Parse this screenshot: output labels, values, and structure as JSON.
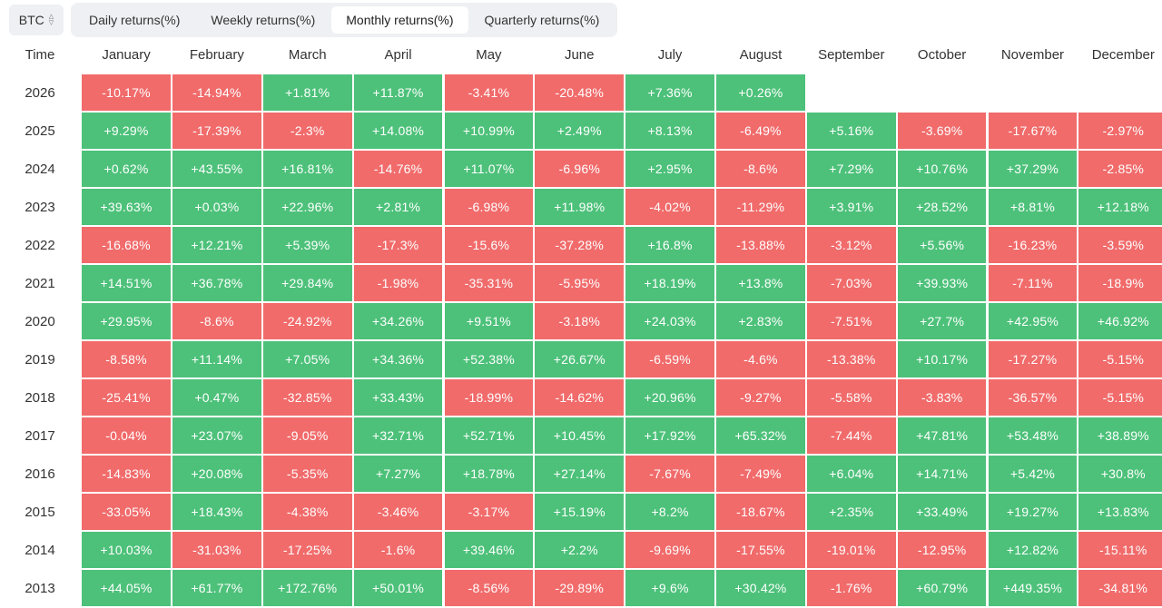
{
  "asset": {
    "label": "BTC"
  },
  "tabs": [
    {
      "label": "Daily returns(%)",
      "active": false
    },
    {
      "label": "Weekly returns(%)",
      "active": false
    },
    {
      "label": "Monthly returns(%)",
      "active": true
    },
    {
      "label": "Quarterly returns(%)",
      "active": false
    }
  ],
  "table": {
    "time_header": "Time",
    "months": [
      "January",
      "February",
      "March",
      "April",
      "May",
      "June",
      "July",
      "August",
      "September",
      "October",
      "November",
      "December"
    ],
    "rows": [
      {
        "year": "2026",
        "values": [
          "-10.17%",
          "-14.94%",
          "+1.81%",
          "+11.87%",
          "-3.41%",
          "-20.48%",
          "+7.36%",
          "+0.26%",
          "",
          "",
          "",
          ""
        ]
      },
      {
        "year": "2025",
        "values": [
          "+9.29%",
          "-17.39%",
          "-2.3%",
          "+14.08%",
          "+10.99%",
          "+2.49%",
          "+8.13%",
          "-6.49%",
          "+5.16%",
          "-3.69%",
          "-17.67%",
          "-2.97%"
        ]
      },
      {
        "year": "2024",
        "values": [
          "+0.62%",
          "+43.55%",
          "+16.81%",
          "-14.76%",
          "+11.07%",
          "-6.96%",
          "+2.95%",
          "-8.6%",
          "+7.29%",
          "+10.76%",
          "+37.29%",
          "-2.85%"
        ]
      },
      {
        "year": "2023",
        "values": [
          "+39.63%",
          "+0.03%",
          "+22.96%",
          "+2.81%",
          "-6.98%",
          "+11.98%",
          "-4.02%",
          "-11.29%",
          "+3.91%",
          "+28.52%",
          "+8.81%",
          "+12.18%"
        ]
      },
      {
        "year": "2022",
        "values": [
          "-16.68%",
          "+12.21%",
          "+5.39%",
          "-17.3%",
          "-15.6%",
          "-37.28%",
          "+16.8%",
          "-13.88%",
          "-3.12%",
          "+5.56%",
          "-16.23%",
          "-3.59%"
        ]
      },
      {
        "year": "2021",
        "values": [
          "+14.51%",
          "+36.78%",
          "+29.84%",
          "-1.98%",
          "-35.31%",
          "-5.95%",
          "+18.19%",
          "+13.8%",
          "-7.03%",
          "+39.93%",
          "-7.11%",
          "-18.9%"
        ]
      },
      {
        "year": "2020",
        "values": [
          "+29.95%",
          "-8.6%",
          "-24.92%",
          "+34.26%",
          "+9.51%",
          "-3.18%",
          "+24.03%",
          "+2.83%",
          "-7.51%",
          "+27.7%",
          "+42.95%",
          "+46.92%"
        ]
      },
      {
        "year": "2019",
        "values": [
          "-8.58%",
          "+11.14%",
          "+7.05%",
          "+34.36%",
          "+52.38%",
          "+26.67%",
          "-6.59%",
          "-4.6%",
          "-13.38%",
          "+10.17%",
          "-17.27%",
          "-5.15%"
        ]
      },
      {
        "year": "2018",
        "values": [
          "-25.41%",
          "+0.47%",
          "-32.85%",
          "+33.43%",
          "-18.99%",
          "-14.62%",
          "+20.96%",
          "-9.27%",
          "-5.58%",
          "-3.83%",
          "-36.57%",
          "-5.15%"
        ]
      },
      {
        "year": "2017",
        "values": [
          "-0.04%",
          "+23.07%",
          "-9.05%",
          "+32.71%",
          "+52.71%",
          "+10.45%",
          "+17.92%",
          "+65.32%",
          "-7.44%",
          "+47.81%",
          "+53.48%",
          "+38.89%"
        ]
      },
      {
        "year": "2016",
        "values": [
          "-14.83%",
          "+20.08%",
          "-5.35%",
          "+7.27%",
          "+18.78%",
          "+27.14%",
          "-7.67%",
          "-7.49%",
          "+6.04%",
          "+14.71%",
          "+5.42%",
          "+30.8%"
        ]
      },
      {
        "year": "2015",
        "values": [
          "-33.05%",
          "+18.43%",
          "-4.38%",
          "-3.46%",
          "-3.17%",
          "+15.19%",
          "+8.2%",
          "-18.67%",
          "+2.35%",
          "+33.49%",
          "+19.27%",
          "+13.83%"
        ]
      },
      {
        "year": "2014",
        "values": [
          "+10.03%",
          "-31.03%",
          "-17.25%",
          "-1.6%",
          "+39.46%",
          "+2.2%",
          "-9.69%",
          "-17.55%",
          "-19.01%",
          "-12.95%",
          "+12.82%",
          "-15.11%"
        ]
      },
      {
        "year": "2013",
        "values": [
          "+44.05%",
          "+61.77%",
          "+172.76%",
          "+50.01%",
          "-8.56%",
          "-29.89%",
          "+9.6%",
          "+30.42%",
          "-1.76%",
          "+60.79%",
          "+449.35%",
          "-34.81%"
        ]
      }
    ]
  },
  "colors": {
    "positive": "#4dc17a",
    "negative": "#f16b6b",
    "tab_bar_bg": "#eef0f3"
  }
}
